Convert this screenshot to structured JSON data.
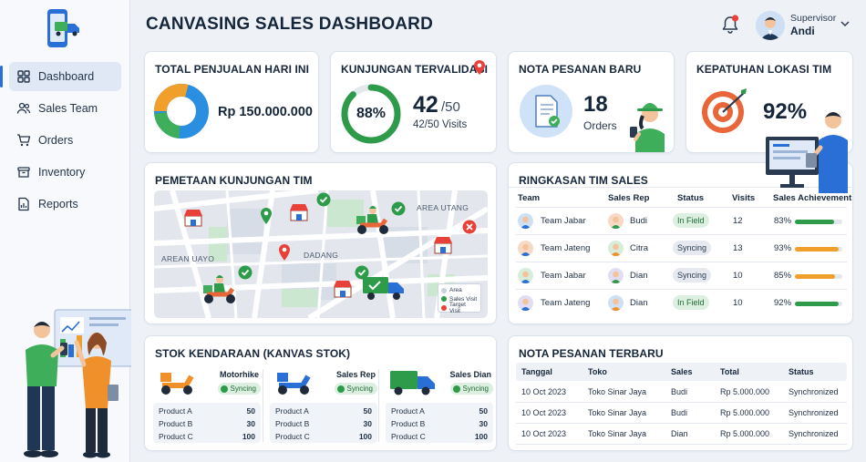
{
  "header": {
    "title": "CANVASING SALES DASHBOARD",
    "user_role": "Supervisor",
    "user_name": "Andi"
  },
  "sidebar": {
    "items": [
      {
        "label": "Dashboard",
        "icon": "grid-icon",
        "active": true
      },
      {
        "label": "Sales Team",
        "icon": "users-icon"
      },
      {
        "label": "Orders",
        "icon": "cart-icon"
      },
      {
        "label": "Inventory",
        "icon": "box-icon"
      },
      {
        "label": "Reports",
        "icon": "report-icon"
      }
    ]
  },
  "kpis": {
    "sales": {
      "title": "TOTAL PENJUALAN HARI INI",
      "value": "Rp 150.000.000"
    },
    "visits": {
      "title": "KUNJUNGAN TERVALIDASI",
      "percent": "88%",
      "big": "42",
      "denominator": "/50",
      "caption": "42/50 Visits",
      "ratio": 0.88
    },
    "orders": {
      "title": "NOTA PESANAN BARU",
      "count": "18",
      "unit": "Orders"
    },
    "compliance": {
      "title": "KEPATUHAN LOKASI TIM",
      "value": "92%"
    }
  },
  "map": {
    "title": "PEMETAAN KUNJUNGAN TIM",
    "labels": {
      "area_utang": "AREA UTANG",
      "area_uayo": "AREAN UAYO",
      "dadang": "DADANG"
    },
    "legend": [
      "Area",
      "Sales Visit",
      "Target Visit"
    ]
  },
  "team": {
    "title": "RINGKASAN TIM SALES",
    "columns": [
      "Team",
      "Sales Rep",
      "Status",
      "Visits",
      "Sales Achievement"
    ],
    "rows": [
      {
        "team": "Team Jabar",
        "rep": "Budi",
        "status": "In Field",
        "visits": "12",
        "achievement": "83%",
        "fraction": 0.83,
        "color": "#2e9b4b"
      },
      {
        "team": "Team Jateng",
        "rep": "Citra",
        "status": "Syncing",
        "visits": "13",
        "achievement": "93%",
        "fraction": 0.93,
        "color": "#f0a02a"
      },
      {
        "team": "Team Jabar",
        "rep": "Dian",
        "status": "Syncing",
        "visits": "10",
        "achievement": "85%",
        "fraction": 0.85,
        "color": "#f0a02a"
      },
      {
        "team": "Team Jateng",
        "rep": "Dian",
        "status": "In Field",
        "visits": "10",
        "achievement": "92%",
        "fraction": 0.92,
        "color": "#2e9b4b"
      }
    ]
  },
  "stock": {
    "title": "STOK KENDARAAN (KANVAS STOK)",
    "vehicles": [
      {
        "name": "Motorhike",
        "status": "Syncing",
        "items": [
          {
            "product": "Product A",
            "qty": "50"
          },
          {
            "product": "Product B",
            "qty": "30"
          },
          {
            "product": "Product C",
            "qty": "100"
          }
        ]
      },
      {
        "name": "Sales Rep",
        "status": "Syncing",
        "items": [
          {
            "product": "Product A",
            "qty": "50"
          },
          {
            "product": "Product B",
            "qty": "30"
          },
          {
            "product": "Product C",
            "qty": "100"
          }
        ]
      },
      {
        "name": "Sales Dian",
        "status": "Syncing",
        "items": [
          {
            "product": "Product A",
            "qty": "50"
          },
          {
            "product": "Product B",
            "qty": "30"
          },
          {
            "product": "Product C",
            "qty": "100"
          }
        ]
      }
    ]
  },
  "orders": {
    "title": "NOTA PESANAN TERBARU",
    "columns": [
      "Tanggal",
      "Toko",
      "Sales",
      "Total",
      "Status"
    ],
    "rows": [
      {
        "date": "10 Oct 2023",
        "store": "Toko Sinar Jaya",
        "sales": "Budi",
        "total": "Rp 5.000.000",
        "status": "Synchronized"
      },
      {
        "date": "10 Oct 2023",
        "store": "Toko Sinar Jaya",
        "sales": "Budi",
        "total": "Rp 5.000.000",
        "status": "Synchronized"
      },
      {
        "date": "10 Oct 2023",
        "store": "Toko Sinar Jaya",
        "sales": "Dian",
        "total": "Rp 5.000.000",
        "status": "Synchronized"
      }
    ]
  }
}
